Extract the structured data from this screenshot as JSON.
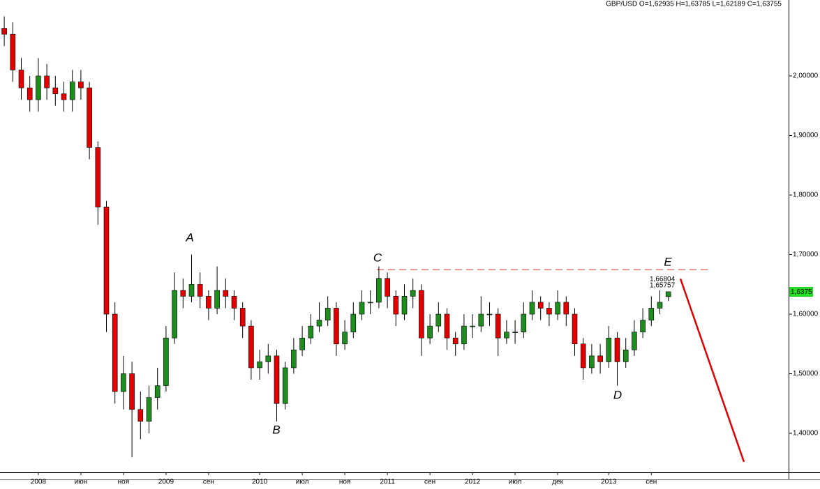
{
  "chart_data": {
    "type": "candlestick",
    "title": "GBP/USD O=1,62935 H=1,63785 L=1,62189 C=1,63755",
    "categories": [
      null,
      null,
      null,
      null,
      "2008",
      null,
      null,
      null,
      null,
      "июн",
      null,
      null,
      null,
      null,
      "ноя",
      null,
      null,
      null,
      null,
      "2009",
      null,
      null,
      null,
      null,
      "сен",
      null,
      null,
      null,
      null,
      null,
      "2010",
      null,
      null,
      null,
      null,
      "июл",
      null,
      null,
      null,
      null,
      "ноя",
      null,
      null,
      null,
      null,
      "2011",
      null,
      null,
      null,
      null,
      "сен",
      null,
      null,
      null,
      null,
      "2012",
      null,
      null,
      null,
      null,
      "июл",
      null,
      null,
      null,
      null,
      "дек",
      null,
      null,
      null,
      null,
      null,
      "2013",
      null,
      null,
      null,
      null,
      "сен",
      null,
      null
    ],
    "open": [
      2.08,
      2.07,
      2.01,
      1.98,
      1.96,
      2.0,
      1.98,
      1.97,
      1.96,
      1.99,
      1.98,
      1.88,
      1.78,
      1.6,
      1.47,
      1.5,
      1.44,
      1.42,
      1.46,
      1.48,
      1.56,
      1.64,
      1.63,
      1.65,
      1.63,
      1.61,
      1.64,
      1.63,
      1.61,
      1.58,
      1.51,
      1.52,
      1.53,
      1.45,
      1.51,
      1.54,
      1.56,
      1.58,
      1.59,
      1.61,
      1.55,
      1.57,
      1.6,
      1.62,
      1.62,
      1.66,
      1.63,
      1.6,
      1.63,
      1.64,
      1.56,
      1.58,
      1.6,
      1.56,
      1.55,
      1.58,
      1.58,
      1.6,
      1.6,
      1.56,
      1.57,
      1.57,
      1.6,
      1.62,
      1.61,
      1.6,
      1.62,
      1.6,
      1.55,
      1.51,
      1.53,
      1.52,
      1.56,
      1.52,
      1.54,
      1.57,
      1.59,
      1.61,
      1.62935
    ],
    "high": [
      2.1,
      2.09,
      2.03,
      2.0,
      2.03,
      2.02,
      2.0,
      1.99,
      2.01,
      2.01,
      1.99,
      1.89,
      1.79,
      1.62,
      1.53,
      1.52,
      1.47,
      1.48,
      1.51,
      1.58,
      1.67,
      1.66,
      1.7,
      1.67,
      1.64,
      1.68,
      1.66,
      1.64,
      1.62,
      1.59,
      1.54,
      1.55,
      1.54,
      1.52,
      1.56,
      1.58,
      1.6,
      1.62,
      1.63,
      1.62,
      1.59,
      1.62,
      1.64,
      1.64,
      1.68,
      1.67,
      1.64,
      1.65,
      1.66,
      1.65,
      1.6,
      1.62,
      1.61,
      1.57,
      1.6,
      1.6,
      1.63,
      1.62,
      1.61,
      1.59,
      1.59,
      1.62,
      1.64,
      1.63,
      1.62,
      1.64,
      1.63,
      1.61,
      1.56,
      1.55,
      1.55,
      1.58,
      1.57,
      1.56,
      1.59,
      1.61,
      1.63,
      1.64,
      1.63785
    ],
    "low": [
      2.05,
      1.99,
      1.96,
      1.94,
      1.94,
      1.96,
      1.95,
      1.94,
      1.94,
      1.96,
      1.86,
      1.75,
      1.57,
      1.45,
      1.44,
      1.36,
      1.39,
      1.4,
      1.44,
      1.47,
      1.55,
      1.61,
      1.62,
      1.61,
      1.59,
      1.6,
      1.61,
      1.59,
      1.56,
      1.49,
      1.49,
      1.5,
      1.42,
      1.44,
      1.5,
      1.53,
      1.55,
      1.57,
      1.58,
      1.53,
      1.54,
      1.56,
      1.59,
      1.6,
      1.61,
      1.61,
      1.58,
      1.59,
      1.61,
      1.53,
      1.55,
      1.57,
      1.54,
      1.53,
      1.54,
      1.56,
      1.57,
      1.58,
      1.53,
      1.55,
      1.55,
      1.56,
      1.59,
      1.59,
      1.58,
      1.59,
      1.58,
      1.53,
      1.49,
      1.5,
      1.5,
      1.51,
      1.48,
      1.51,
      1.53,
      1.56,
      1.58,
      1.6,
      1.62189
    ],
    "close": [
      2.07,
      2.01,
      1.98,
      1.96,
      2.0,
      1.98,
      1.97,
      1.96,
      1.99,
      1.98,
      1.88,
      1.78,
      1.6,
      1.47,
      1.5,
      1.44,
      1.42,
      1.46,
      1.48,
      1.56,
      1.64,
      1.63,
      1.65,
      1.63,
      1.61,
      1.64,
      1.63,
      1.61,
      1.58,
      1.51,
      1.52,
      1.53,
      1.45,
      1.51,
      1.54,
      1.56,
      1.58,
      1.59,
      1.61,
      1.55,
      1.57,
      1.6,
      1.62,
      1.62,
      1.66,
      1.63,
      1.6,
      1.63,
      1.64,
      1.56,
      1.58,
      1.6,
      1.56,
      1.55,
      1.58,
      1.58,
      1.6,
      1.6,
      1.56,
      1.57,
      1.57,
      1.6,
      1.62,
      1.61,
      1.6,
      1.62,
      1.6,
      1.55,
      1.51,
      1.53,
      1.52,
      1.56,
      1.52,
      1.54,
      1.57,
      1.59,
      1.61,
      1.62,
      1.63755
    ],
    "up_color": "#1e8c1e",
    "down_color": "#e00000",
    "ylim": [
      1.3345,
      2.1275
    ],
    "yticks": [
      {
        "value": 1.4,
        "label": "1,40000"
      },
      {
        "value": 1.5,
        "label": "1,50000"
      },
      {
        "value": 1.6,
        "label": "1,60000"
      },
      {
        "value": 1.7,
        "label": "1,70000"
      },
      {
        "value": 1.8,
        "label": "1,80000"
      },
      {
        "value": 1.9,
        "label": "1,90000"
      },
      {
        "value": 2.0,
        "label": "2,00000"
      }
    ],
    "current_price_label": "1,6375",
    "annotations": [
      "A",
      "B",
      "C",
      "D",
      "E",
      "1,66804",
      "1,65757"
    ]
  }
}
